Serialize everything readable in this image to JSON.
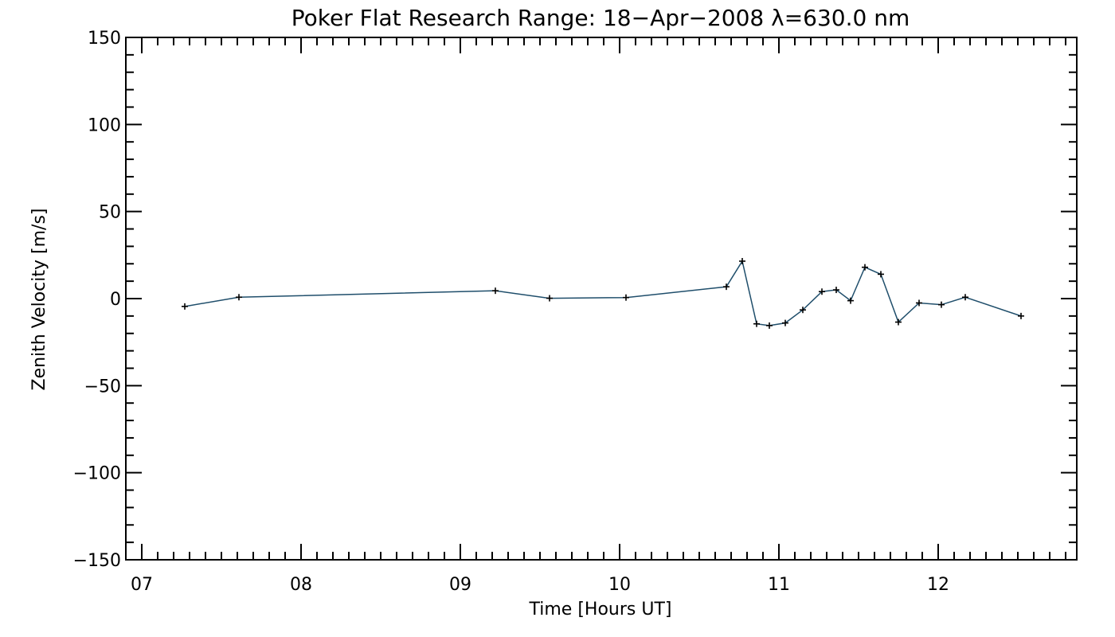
{
  "chart_data": {
    "type": "line",
    "title": "Poker Flat Research Range: 18−Apr−2008 λ=630.0 nm",
    "xlabel": "Time [Hours UT]",
    "ylabel": "Zenith Velocity [m/s]",
    "xlim": [
      6.9,
      12.87
    ],
    "ylim": [
      -150,
      150
    ],
    "x_ticks": [
      7,
      8,
      9,
      10,
      11,
      12
    ],
    "x_tick_labels": [
      "07",
      "08",
      "09",
      "10",
      "11",
      "12"
    ],
    "y_ticks": [
      -150,
      -100,
      -50,
      0,
      50,
      100,
      150
    ],
    "y_tick_labels": [
      "−150",
      "−100",
      "−50",
      "0",
      "50",
      "100",
      "150"
    ],
    "grid": false,
    "line_color": "#1f4e6b",
    "marker": "plus",
    "series": [
      {
        "x": [
          7.27,
          7.61,
          9.22,
          9.56,
          10.04,
          10.67,
          10.77,
          10.86,
          10.94,
          11.04,
          11.15,
          11.27,
          11.36,
          11.45,
          11.54,
          11.64,
          11.75,
          11.88,
          12.02,
          12.17,
          12.52
        ],
        "y": [
          -4.5,
          0.8,
          4.5,
          0.2,
          0.6,
          6.8,
          21.5,
          -14.5,
          -15.5,
          -14.0,
          -6.5,
          4.0,
          5.0,
          -1.2,
          18.0,
          14.0,
          -13.5,
          -2.5,
          -3.5,
          0.8,
          -10.0
        ]
      }
    ]
  }
}
